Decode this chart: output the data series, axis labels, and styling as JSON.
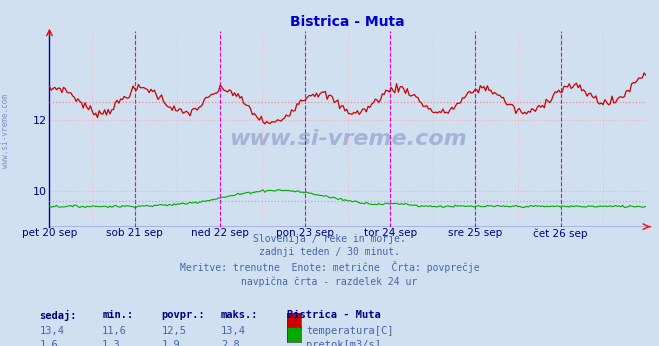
{
  "title": "Bistrica - Muta",
  "title_color": "#0000cc",
  "bg_color": "#d0e0f0",
  "plot_bg_color": "#d0e0f0",
  "x_labels": [
    "pet 20 sep",
    "sob 21 sep",
    "ned 22 sep",
    "pon 23 sep",
    "tor 24 sep",
    "sre 25 sep",
    "čet 26 sep"
  ],
  "x_label_color": "#000080",
  "y_ticks": [
    10,
    12
  ],
  "y_color": "#000080",
  "temp_color": "#cc0000",
  "flow_color": "#00aa00",
  "avg_temp_color": "#ee8888",
  "avg_flow_color": "#88cc88",
  "avg_temp": 12.5,
  "avg_flow": 1.9,
  "temp_min": 11.6,
  "temp_max": 13.4,
  "flow_min": 1.3,
  "flow_max": 2.8,
  "temp_sedaj": 13.4,
  "flow_sedaj": 1.6,
  "n_points": 336,
  "vline_color": "#dd00dd",
  "hgrid_color": "#ffaaaa",
  "vgrid_color": "#ffaaaa",
  "watermark": "www.si-vreme.com",
  "watermark_color": "#000080",
  "watermark_alpha": 0.2,
  "ylabel_text": "www.si-vreme.com",
  "ylabel_color": "#5566aa",
  "subtitle_lines": [
    "Slovenija / reke in morje.",
    "zadnji teden / 30 minut.",
    "Meritve: trenutne  Enote: metrične  Črta: povprečje",
    "navpična črta - razdelek 24 ur"
  ],
  "subtitle_color": "#4466aa",
  "legend_title": "Bistrica - Muta",
  "legend_color": "#000080",
  "table_header": [
    "sedaj:",
    "min.:",
    "povpr.:",
    "maks.:"
  ],
  "table_temp": [
    "13,4",
    "11,6",
    "12,5",
    "13,4"
  ],
  "table_flow": [
    "1,6",
    "1,3",
    "1,9",
    "2,8"
  ],
  "table_color": "#4466aa",
  "table_bold_color": "#000080",
  "ylim_min": 9.0,
  "ylim_max": 14.5,
  "flow_scale_min": 0.0,
  "flow_scale_max": 14.5
}
